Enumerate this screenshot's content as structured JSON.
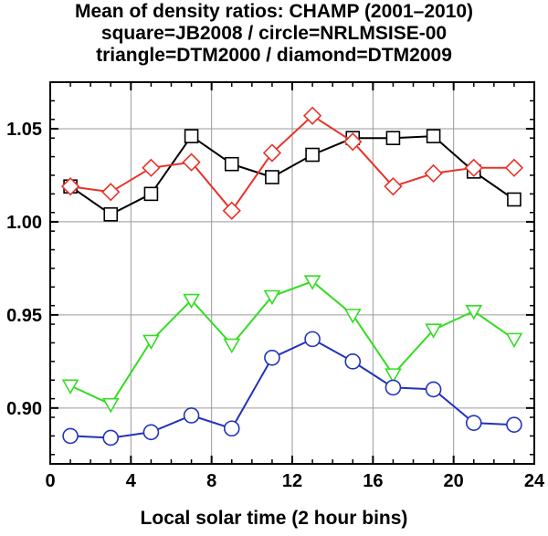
{
  "chart_data": {
    "type": "line",
    "title_lines": [
      "Mean of density ratios: CHAMP (2001–2010)",
      "square=JB2008 / circle=NRLMSISE-00",
      "triangle=DTM2000 / diamond=DTM2009"
    ],
    "xlabel": "Local solar time (2 hour bins)",
    "ylabel": "",
    "xlim": [
      0,
      24
    ],
    "ylim": [
      0.87,
      1.075
    ],
    "xticks": [
      0,
      4,
      8,
      12,
      16,
      20,
      24
    ],
    "yticks": [
      0.9,
      0.95,
      1.0,
      1.05
    ],
    "ytick_labels": [
      "0.90",
      "0.95",
      "1.00",
      "1.05"
    ],
    "grid": true,
    "x": [
      1,
      3,
      5,
      7,
      9,
      11,
      13,
      15,
      17,
      19,
      21,
      23
    ],
    "series": [
      {
        "marker": "square",
        "color": "#000000",
        "values": [
          1.019,
          1.004,
          1.015,
          1.046,
          1.031,
          1.024,
          1.036,
          1.045,
          1.045,
          1.046,
          1.027,
          1.012
        ]
      },
      {
        "marker": "diamond",
        "color": "#e8332a",
        "values": [
          1.019,
          1.016,
          1.029,
          1.032,
          1.006,
          1.037,
          1.057,
          1.043,
          1.019,
          1.026,
          1.029,
          1.029
        ]
      },
      {
        "marker": "triangle-down",
        "color": "#33dd22",
        "values": [
          0.912,
          0.902,
          0.936,
          0.958,
          0.934,
          0.96,
          0.968,
          0.95,
          0.918,
          0.942,
          0.952,
          0.937
        ]
      },
      {
        "marker": "circle",
        "color": "#2233bb",
        "values": [
          0.885,
          0.884,
          0.887,
          0.896,
          0.889,
          0.927,
          0.937,
          0.925,
          0.911,
          0.91,
          0.892,
          0.891
        ]
      }
    ]
  }
}
